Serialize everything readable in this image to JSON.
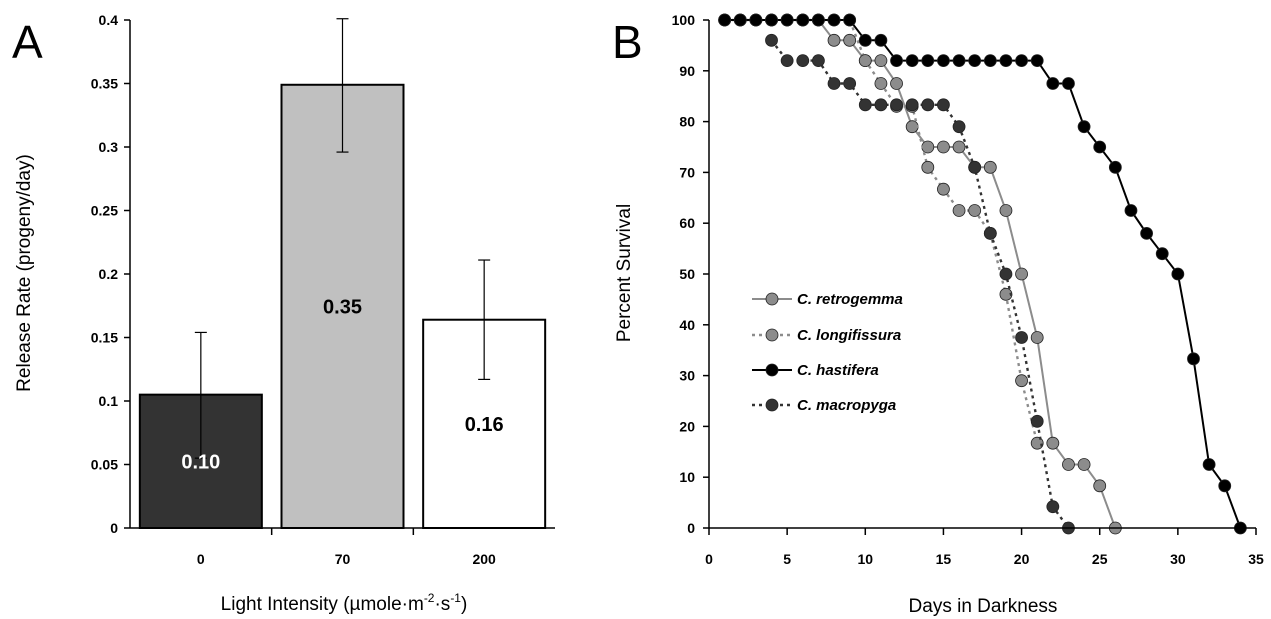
{
  "chart_data": [
    {
      "panel": "A",
      "type": "bar",
      "xlabel": "Light Intensity (µmole·m",
      "xlabel_sup1": "-2",
      "xlabel_mid": "·s",
      "xlabel_sup2": "-1",
      "xlabel_end": ")",
      "ylabel": "Release Rate (progeny/day)",
      "ylim": [
        0,
        0.4
      ],
      "yticks": [
        "0",
        "0.05",
        "0.1",
        "0.15",
        "0.2",
        "0.25",
        "0.3",
        "0.35",
        "0.4"
      ],
      "ytick_values": [
        0,
        0.05,
        0.1,
        0.15,
        0.2,
        0.25,
        0.3,
        0.35,
        0.4
      ],
      "categories": [
        "0",
        "70",
        "200"
      ],
      "values": [
        0.105,
        0.349,
        0.164
      ],
      "value_labels": [
        "0.10",
        "0.35",
        "0.16"
      ],
      "error_low": [
        0.055,
        0.296,
        0.117
      ],
      "error_high": [
        0.154,
        0.401,
        0.211
      ],
      "bar_colors": [
        "#333333",
        "#c0c0c0",
        "#ffffff"
      ],
      "label_colors": [
        "#ffffff",
        "#000000",
        "#000000"
      ]
    },
    {
      "panel": "B",
      "type": "line",
      "xlabel": "Days in Darkness",
      "ylabel": "Percent Survival",
      "xlim": [
        0,
        35
      ],
      "ylim": [
        0,
        100
      ],
      "xticks": [
        "0",
        "5",
        "10",
        "15",
        "20",
        "25",
        "30",
        "35"
      ],
      "xtick_values": [
        0,
        5,
        10,
        15,
        20,
        25,
        30,
        35
      ],
      "yticks": [
        "0",
        "10",
        "20",
        "30",
        "40",
        "50",
        "60",
        "70",
        "80",
        "90",
        "100"
      ],
      "ytick_values": [
        0,
        10,
        20,
        30,
        40,
        50,
        60,
        70,
        80,
        90,
        100
      ],
      "legend_position": "left",
      "series": [
        {
          "name": "C. retrogemma",
          "color": "#8c8c8c",
          "marker": "#8c8c8c",
          "dashed": false,
          "x": [
            1,
            2,
            3,
            4,
            5,
            6,
            7,
            8,
            9,
            10,
            11,
            12,
            13,
            14,
            15,
            16,
            17,
            18,
            19,
            20,
            21,
            22,
            23,
            24,
            25,
            26
          ],
          "y": [
            100,
            100,
            100,
            100,
            100,
            100,
            100,
            96,
            96,
            92,
            92,
            87.5,
            79,
            75,
            75,
            75,
            71,
            71,
            62.5,
            50,
            37.5,
            16.7,
            12.5,
            12.5,
            8.3,
            0
          ]
        },
        {
          "name": "C. longifissura",
          "color": "#8c8c8c",
          "marker": "#8c8c8c",
          "dashed": true,
          "x": [
            1,
            2,
            3,
            4,
            5,
            6,
            7,
            8,
            9,
            10,
            11,
            12,
            13,
            14,
            15,
            16,
            17,
            18,
            19,
            20,
            21
          ],
          "y": [
            100,
            100,
            100,
            100,
            100,
            100,
            100,
            100,
            100,
            92,
            87.5,
            83,
            83,
            71,
            66.7,
            62.5,
            62.5,
            58,
            46,
            29,
            16.7
          ]
        },
        {
          "name": "C. hastifera",
          "color": "#000000",
          "marker": "#000000",
          "dashed": false,
          "x": [
            1,
            2,
            3,
            4,
            5,
            6,
            7,
            8,
            9,
            10,
            11,
            12,
            13,
            14,
            15,
            16,
            17,
            18,
            19,
            20,
            21,
            22,
            23,
            24,
            25,
            26,
            27,
            28,
            29,
            30,
            31,
            32,
            33,
            34
          ],
          "y": [
            100,
            100,
            100,
            100,
            100,
            100,
            100,
            100,
            100,
            96,
            96,
            92,
            92,
            92,
            92,
            92,
            92,
            92,
            92,
            92,
            92,
            87.5,
            87.5,
            79,
            75,
            71,
            62.5,
            58,
            54,
            50,
            33.3,
            12.5,
            8.3,
            0
          ]
        },
        {
          "name": "C. macropyga",
          "color": "#333333",
          "marker": "#333333",
          "dashed": true,
          "x": [
            4,
            5,
            6,
            7,
            8,
            9,
            10,
            11,
            12,
            13,
            14,
            15,
            16,
            17,
            18,
            19,
            20,
            21,
            22,
            23
          ],
          "y": [
            96,
            92,
            92,
            92,
            87.5,
            87.5,
            83.3,
            83.3,
            83.3,
            83.3,
            83.3,
            83.3,
            79,
            71,
            58,
            50,
            37.5,
            21,
            4.2,
            0
          ]
        }
      ]
    }
  ]
}
